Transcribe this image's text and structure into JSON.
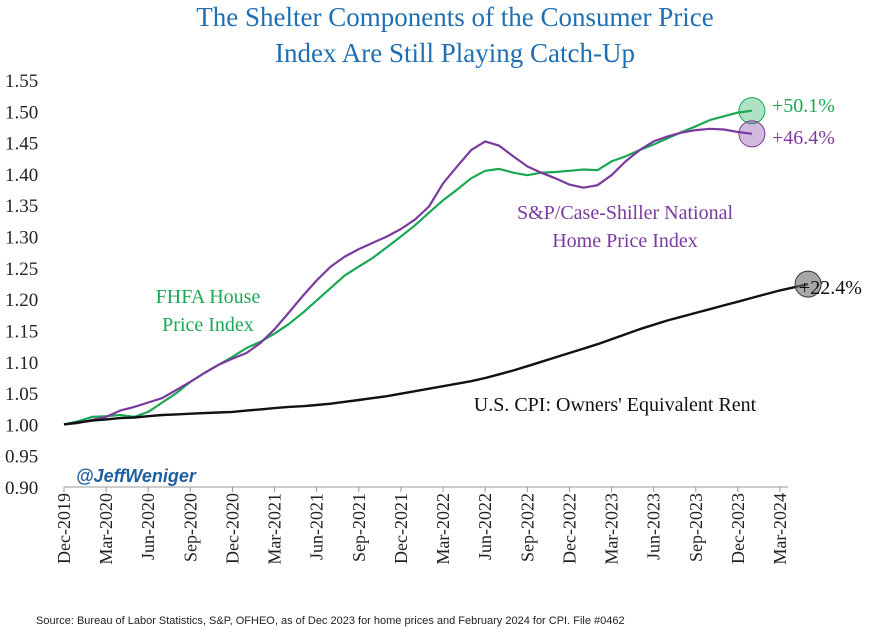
{
  "chart_data": {
    "type": "line",
    "title_line1": "The Shelter Components of the Consumer Price",
    "title_line2": "Index Are Still Playing Catch-Up",
    "ylim": [
      0.9,
      1.55
    ],
    "y_ticks": [
      "0.90",
      "0.95",
      "1.00",
      "1.05",
      "1.10",
      "1.15",
      "1.20",
      "1.25",
      "1.30",
      "1.35",
      "1.40",
      "1.45",
      "1.50",
      "1.55"
    ],
    "x_ticks": [
      "Dec-2019",
      "Mar-2020",
      "Jun-2020",
      "Sep-2020",
      "Dec-2020",
      "Mar-2021",
      "Jun-2021",
      "Sep-2021",
      "Dec-2021",
      "Mar-2022",
      "Jun-2022",
      "Sep-2022",
      "Dec-2022",
      "Mar-2023",
      "Jun-2023",
      "Sep-2023",
      "Dec-2023",
      "Mar-2024"
    ],
    "grid": false,
    "series": [
      {
        "name_line1": "FHFA House",
        "name_line2": "Price Index",
        "color": "#1aa855",
        "end_label": "+50.1%",
        "values": [
          1.0,
          1.005,
          1.012,
          1.013,
          1.015,
          1.012,
          1.02,
          1.035,
          1.05,
          1.068,
          1.082,
          1.095,
          1.108,
          1.122,
          1.132,
          1.145,
          1.16,
          1.178,
          1.198,
          1.218,
          1.238,
          1.252,
          1.266,
          1.283,
          1.3,
          1.318,
          1.338,
          1.358,
          1.375,
          1.393,
          1.405,
          1.408,
          1.402,
          1.398,
          1.402,
          1.403,
          1.405,
          1.407,
          1.406,
          1.42,
          1.428,
          1.438,
          1.447,
          1.457,
          1.467,
          1.476,
          1.486,
          1.492,
          1.498,
          1.501
        ]
      },
      {
        "name_line1": "S&P/Case-Shiller National",
        "name_line2": "Home Price Index",
        "color": "#7a3a9e",
        "end_label": "+46.4%",
        "values": [
          1.0,
          1.002,
          1.007,
          1.012,
          1.022,
          1.028,
          1.035,
          1.042,
          1.055,
          1.068,
          1.082,
          1.095,
          1.105,
          1.114,
          1.13,
          1.152,
          1.178,
          1.205,
          1.23,
          1.252,
          1.268,
          1.28,
          1.29,
          1.3,
          1.312,
          1.327,
          1.348,
          1.385,
          1.412,
          1.438,
          1.452,
          1.445,
          1.428,
          1.412,
          1.402,
          1.393,
          1.383,
          1.378,
          1.382,
          1.398,
          1.42,
          1.438,
          1.452,
          1.46,
          1.466,
          1.47,
          1.472,
          1.471,
          1.467,
          1.464
        ]
      },
      {
        "name": "U.S. CPI: Owners' Equivalent Rent",
        "color": "#111111",
        "end_label": "+22.4%",
        "values": [
          1.0,
          1.003,
          1.006,
          1.008,
          1.01,
          1.011,
          1.013,
          1.015,
          1.016,
          1.017,
          1.018,
          1.019,
          1.02,
          1.022,
          1.024,
          1.026,
          1.028,
          1.029,
          1.031,
          1.033,
          1.036,
          1.039,
          1.042,
          1.045,
          1.049,
          1.053,
          1.057,
          1.061,
          1.065,
          1.069,
          1.074,
          1.08,
          1.086,
          1.093,
          1.1,
          1.107,
          1.114,
          1.121,
          1.128,
          1.136,
          1.144,
          1.152,
          1.159,
          1.166,
          1.172,
          1.178,
          1.184,
          1.19,
          1.196,
          1.202,
          1.208,
          1.214,
          1.219,
          1.224
        ]
      }
    ]
  },
  "handle": "@JeffWeniger",
  "source": "Source: Bureau of Labor Statistics, S&P, OFHEO, as of Dec 2023 for home prices and February 2024 for CPI. File #0462"
}
